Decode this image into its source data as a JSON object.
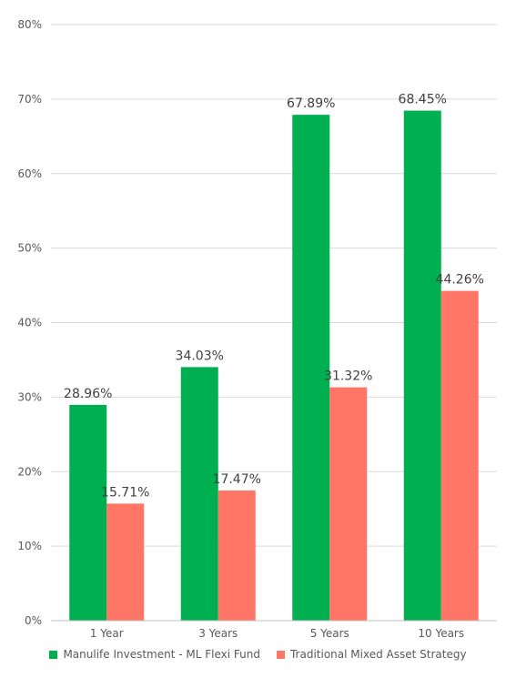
{
  "chart_data": {
    "type": "bar",
    "categories": [
      "1 Year",
      "3 Years",
      "5 Years",
      "10 Years"
    ],
    "series": [
      {
        "name": "Manulife Investment - ML Flexi Fund",
        "values": [
          28.96,
          34.03,
          67.89,
          68.45
        ],
        "labels": [
          "28.96%",
          "34.03%",
          "67.89%",
          "68.45%"
        ],
        "color": "#00b050"
      },
      {
        "name": "Traditional Mixed Asset Strategy",
        "values": [
          15.71,
          17.47,
          31.32,
          44.26
        ],
        "labels": [
          "15.71%",
          "17.47%",
          "31.32%",
          "44.26%"
        ],
        "color": "#ff7566"
      }
    ],
    "yticks": [
      "0%",
      "10%",
      "20%",
      "30%",
      "40%",
      "50%",
      "60%",
      "70%",
      "80%"
    ],
    "ylim": [
      0,
      80
    ],
    "grid": true,
    "legend_position": "bottom",
    "title": "",
    "xlabel": "",
    "ylabel": ""
  }
}
